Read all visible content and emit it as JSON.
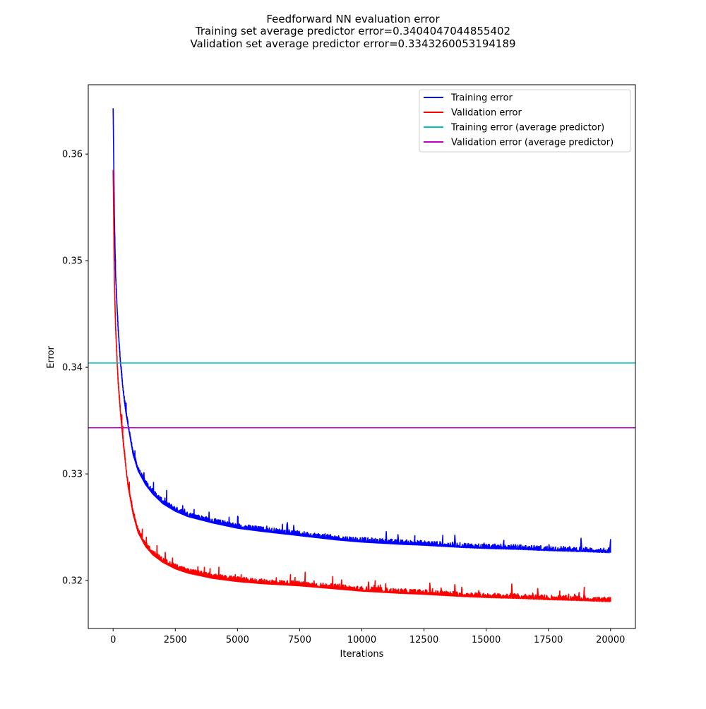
{
  "chart_data": {
    "type": "line",
    "title": "Feedforward NN evaluation error",
    "subtitle_lines": [
      "Training set average predictor error=0.3404047044855402",
      "Validation set average predictor error=0.3343260053194189"
    ],
    "xlabel": "Iterations",
    "ylabel": "Error",
    "xlim": [
      -1000,
      21000
    ],
    "ylim": [
      0.3155,
      0.3665
    ],
    "xticks": [
      0,
      2500,
      5000,
      7500,
      10000,
      12500,
      15000,
      17500,
      20000
    ],
    "yticks": [
      0.32,
      0.33,
      0.34,
      0.35,
      0.36
    ],
    "ytick_labels": [
      "0.32",
      "0.33",
      "0.34",
      "0.35",
      "0.36"
    ],
    "grid": false,
    "legend_position": "top-right",
    "series": [
      {
        "name": "Training error",
        "color": "#0000ff",
        "x": [
          0,
          50,
          100,
          200,
          300,
          400,
          500,
          600,
          800,
          1000,
          1300,
          1600,
          2000,
          2500,
          3000,
          4000,
          5000,
          6000,
          7500,
          9000,
          10000,
          11500,
          12500,
          14000,
          15000,
          16500,
          17500,
          19000,
          20000
        ],
        "y": [
          0.3643,
          0.354,
          0.3485,
          0.3435,
          0.3402,
          0.3378,
          0.3359,
          0.3345,
          0.3318,
          0.3303,
          0.329,
          0.3281,
          0.3272,
          0.3265,
          0.326,
          0.3254,
          0.3249,
          0.3246,
          0.3242,
          0.3238,
          0.3236,
          0.3234,
          0.3233,
          0.3231,
          0.323,
          0.3229,
          0.3228,
          0.3227,
          0.3226
        ],
        "noise": 0.0005
      },
      {
        "name": "Validation error",
        "color": "#ff0000",
        "x": [
          0,
          50,
          100,
          200,
          300,
          400,
          500,
          600,
          800,
          1000,
          1300,
          1600,
          2000,
          2500,
          3000,
          4000,
          5000,
          6000,
          7500,
          9000,
          10000,
          11500,
          12500,
          14000,
          15000,
          16500,
          17500,
          19000,
          20000
        ],
        "y": [
          0.3585,
          0.348,
          0.3435,
          0.3385,
          0.3355,
          0.333,
          0.3308,
          0.3288,
          0.3262,
          0.3245,
          0.3232,
          0.3224,
          0.3217,
          0.3211,
          0.3207,
          0.3202,
          0.3199,
          0.3197,
          0.3195,
          0.3192,
          0.319,
          0.3188,
          0.3187,
          0.3185,
          0.3184,
          0.3183,
          0.3182,
          0.3181,
          0.318
        ],
        "noise": 0.0005
      },
      {
        "name": "Training error (average predictor)",
        "color": "#00bfbf",
        "constant": 0.3404047044855402
      },
      {
        "name": "Validation error (average predictor)",
        "color": "#bf00bf",
        "constant": 0.3343260053194189
      }
    ]
  }
}
